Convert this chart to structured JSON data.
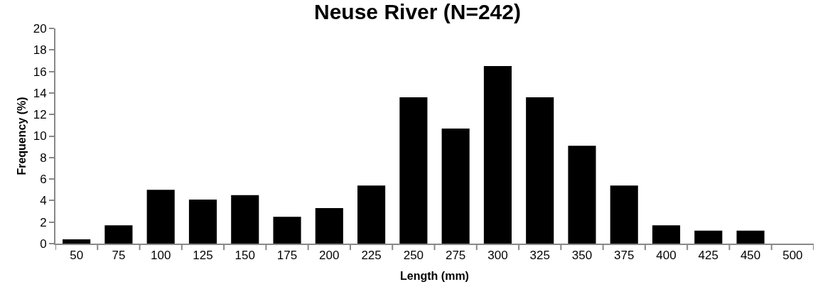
{
  "chart_data": {
    "type": "bar",
    "title": "Neuse River (N=242)",
    "xlabel": "Length (mm)",
    "ylabel": "Frequency (%)",
    "categories": [
      "50",
      "75",
      "100",
      "125",
      "150",
      "175",
      "200",
      "225",
      "250",
      "275",
      "300",
      "325",
      "350",
      "375",
      "400",
      "425",
      "450",
      "500"
    ],
    "values": [
      0.4,
      1.7,
      5.0,
      4.1,
      4.5,
      2.5,
      3.3,
      5.4,
      13.6,
      10.7,
      16.5,
      13.6,
      9.1,
      5.4,
      1.7,
      1.2,
      1.2,
      0
    ],
    "color": "#000000",
    "ylim": [
      0,
      20
    ],
    "yticks": [
      0,
      2,
      4,
      6,
      8,
      10,
      12,
      14,
      16,
      18,
      20
    ]
  }
}
